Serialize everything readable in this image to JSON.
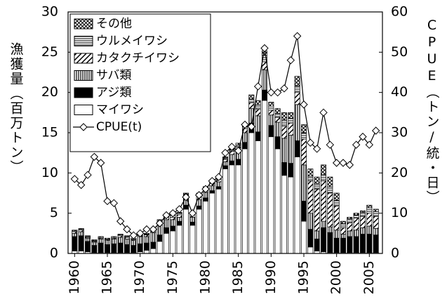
{
  "chart_data": {
    "type": "stacked_bar_line",
    "y_label": "漁獲量（百万トン）",
    "y2_label": "CPUE（トン/統・日）",
    "x": [
      1960,
      1961,
      1962,
      1963,
      1964,
      1965,
      1966,
      1967,
      1968,
      1969,
      1970,
      1971,
      1972,
      1973,
      1974,
      1975,
      1976,
      1977,
      1978,
      1979,
      1980,
      1981,
      1982,
      1983,
      1984,
      1985,
      1986,
      1987,
      1988,
      1989,
      1990,
      1991,
      1992,
      1993,
      1994,
      1995,
      1996,
      1997,
      1998,
      1999,
      2000,
      2001,
      2002,
      2003,
      2004,
      2005,
      2006
    ],
    "xlim": [
      1959,
      2007
    ],
    "xticks": [
      1960,
      1965,
      1970,
      1975,
      1980,
      1985,
      1990,
      1995,
      2000,
      2005
    ],
    "ylim": [
      0,
      30
    ],
    "yticks": [
      0,
      5,
      10,
      15,
      20,
      25,
      30
    ],
    "y2lim": [
      0,
      60
    ],
    "y2ticks": [
      0,
      10,
      20,
      30,
      40,
      50,
      60
    ],
    "series": [
      {
        "name": "マイワシ",
        "color": "#ffffff",
        "values": [
          0.3,
          0.3,
          0.2,
          0.1,
          0.1,
          0.1,
          0.1,
          0.1,
          0.1,
          0.1,
          0.2,
          0.4,
          0.6,
          1.5,
          2.5,
          2.8,
          3.5,
          5.5,
          3.5,
          5.5,
          6.5,
          7.5,
          8.0,
          10.5,
          11.0,
          11.0,
          13.0,
          15.0,
          14.0,
          19.0,
          14.5,
          13.0,
          9.7,
          9.5,
          12.0,
          4.0,
          0.8,
          0.3,
          0.2,
          0.1,
          0.1,
          0.1,
          0.1,
          0.1,
          0.1,
          0.1,
          0.1
        ]
      },
      {
        "name": "アジ類",
        "color": "#000000",
        "values": [
          1.8,
          1.9,
          1.3,
          0.9,
          1.2,
          1.0,
          1.1,
          1.2,
          1.0,
          0.9,
          1.0,
          0.9,
          0.8,
          0.8,
          0.7,
          0.6,
          0.5,
          0.5,
          0.4,
          0.4,
          0.4,
          0.3,
          0.3,
          0.4,
          0.5,
          0.7,
          0.8,
          1.2,
          1.1,
          1.3,
          1.4,
          1.5,
          1.6,
          1.7,
          2.0,
          2.5,
          2.2,
          1.5,
          3.0,
          2.5,
          1.8,
          1.8,
          2.0,
          2.0,
          2.3,
          2.3,
          2.2
        ]
      },
      {
        "name": "サバ類",
        "color": "#000000",
        "values": [
          0.4,
          0.5,
          0.4,
          0.4,
          0.5,
          0.5,
          0.6,
          0.7,
          0.7,
          0.6,
          0.9,
          0.8,
          1.2,
          1.2,
          1.0,
          0.8,
          0.5,
          0.8,
          0.6,
          0.8,
          0.7,
          0.6,
          0.6,
          0.5,
          0.8,
          1.0,
          1.2,
          1.8,
          2.0,
          2.5,
          1.3,
          1.8,
          3.0,
          3.5,
          4.5,
          4.5,
          2.0,
          1.0,
          0.8,
          0.7,
          1.0,
          0.5,
          0.7,
          0.8,
          0.8,
          1.0,
          0.8
        ]
      },
      {
        "name": "カタクチイワシ",
        "color": "#000000",
        "values": [
          0.2,
          0.2,
          0.1,
          0.1,
          0.1,
          0.1,
          0.1,
          0.2,
          0.2,
          0.1,
          0.2,
          0.2,
          0.2,
          0.4,
          0.3,
          0.3,
          0.3,
          0.4,
          0.3,
          0.5,
          0.4,
          0.4,
          0.3,
          0.3,
          0.4,
          0.5,
          0.5,
          0.7,
          0.8,
          1.0,
          0.6,
          0.6,
          1.5,
          1.5,
          1.5,
          3.2,
          4.0,
          5.2,
          5.0,
          4.2,
          3.0,
          0.8,
          1.0,
          1.5,
          1.4,
          1.6,
          1.5
        ]
      },
      {
        "name": "ウルメイワシ",
        "color": "#000000",
        "values": [
          0.1,
          0.1,
          0.1,
          0.1,
          0.1,
          0.1,
          0.1,
          0.1,
          0.1,
          0.1,
          0.1,
          0.1,
          0.1,
          0.2,
          0.2,
          0.2,
          0.2,
          0.2,
          0.2,
          0.2,
          0.2,
          0.1,
          0.2,
          0.2,
          0.2,
          0.3,
          0.3,
          0.5,
          0.6,
          0.8,
          0.5,
          0.5,
          0.8,
          0.6,
          0.8,
          0.8,
          0.6,
          0.6,
          0.8,
          0.8,
          0.7,
          0.5,
          0.5,
          0.4,
          0.5,
          0.7,
          0.6
        ]
      },
      {
        "name": "その他",
        "color": "#000000",
        "values": [
          0.1,
          0.1,
          0.1,
          0.1,
          0.1,
          0.1,
          0.1,
          0.1,
          0.1,
          0.1,
          0.1,
          0.1,
          0.1,
          0.1,
          0.1,
          0.1,
          0.1,
          0.1,
          0.1,
          0.1,
          0.1,
          0.1,
          0.1,
          0.1,
          0.1,
          0.2,
          0.2,
          0.5,
          0.5,
          0.6,
          0.5,
          0.6,
          0.9,
          0.7,
          1.2,
          1.0,
          0.9,
          0.9,
          1.2,
          1.2,
          0.9,
          0.3,
          0.2,
          0.2,
          0.2,
          0.3,
          0.3
        ]
      }
    ],
    "line": {
      "name": "CPUE(t)",
      "axis": "y2",
      "color": "#000000",
      "values": [
        18.5,
        17,
        19.5,
        24,
        22.5,
        13,
        12.5,
        8,
        6,
        4.5,
        5,
        6,
        6,
        7.5,
        9.5,
        10,
        11,
        14,
        10,
        14.5,
        16,
        18,
        19,
        25,
        26.5,
        25.5,
        32,
        31.5,
        41.5,
        51,
        40,
        40,
        41,
        48,
        54,
        37,
        27.5,
        26,
        35,
        27,
        22.5,
        22.5,
        22,
        27,
        29,
        27,
        30.5
      ]
    }
  }
}
